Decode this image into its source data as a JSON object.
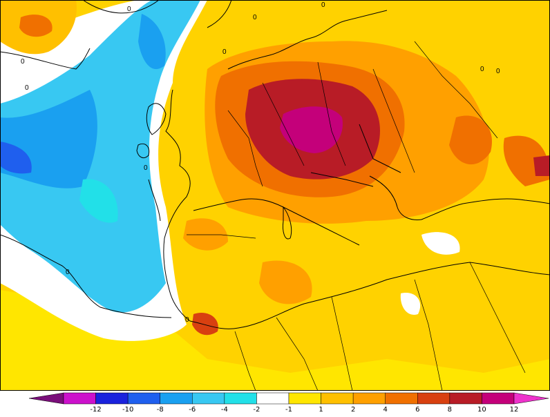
{
  "legend": {
    "labels": [
      "-12",
      "-10",
      "-8",
      "-6",
      "-4",
      "-2",
      "-1",
      "1",
      "2",
      "4",
      "6",
      "8",
      "10",
      "12"
    ],
    "colors": [
      "#7a0f7a",
      "#cc11cc",
      "#1a22dd",
      "#1f5fee",
      "#1aa0f0",
      "#38c8f2",
      "#22e0e8",
      "#ffffff",
      "#ffe600",
      "#ffc000",
      "#ffa000",
      "#f07000",
      "#d84010",
      "#b81c26",
      "#c4007a",
      "#ee33cc"
    ]
  },
  "map": {
    "contour_labels": [
      "0",
      "0",
      "0",
      "0",
      "0",
      "0",
      "0",
      "0",
      "0",
      "0",
      "0"
    ]
  }
}
